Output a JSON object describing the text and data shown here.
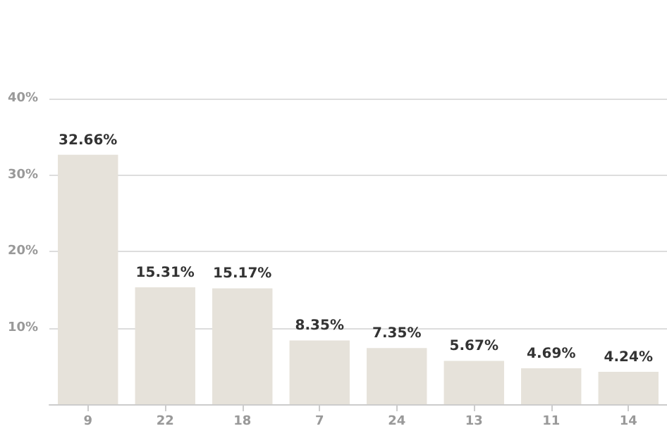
{
  "chart_data": {
    "type": "bar",
    "categories": [
      "9",
      "22",
      "18",
      "7",
      "24",
      "13",
      "11",
      "14"
    ],
    "values": [
      32.66,
      15.31,
      15.17,
      8.35,
      7.35,
      5.67,
      4.69,
      4.24
    ],
    "value_labels": [
      "32.66%",
      "15.31%",
      "15.17%",
      "8.35%",
      "7.35%",
      "5.67%",
      "4.69%",
      "4.24%"
    ],
    "color": "#e6e2da",
    "ylim": [
      0,
      40
    ],
    "yticks": [
      {
        "value": 0,
        "label": null
      },
      {
        "value": 10,
        "label": "10%"
      },
      {
        "value": 20,
        "label": "20%"
      },
      {
        "value": 30,
        "label": "30%"
      },
      {
        "value": 40,
        "label": "40%"
      }
    ],
    "grid": "y"
  }
}
